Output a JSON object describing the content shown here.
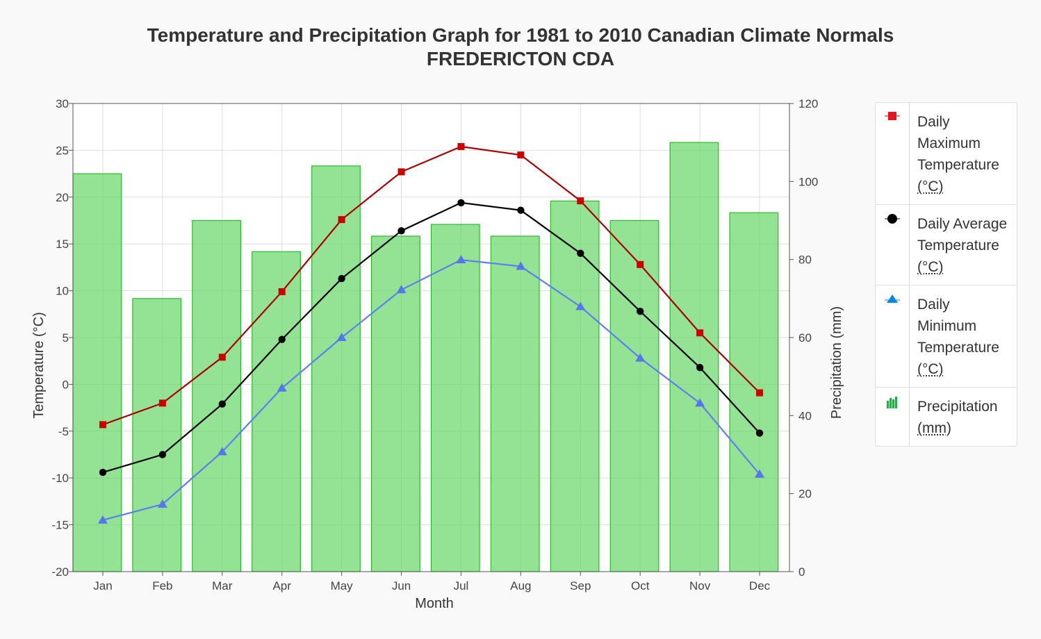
{
  "title_line1": "Temperature and Precipitation Graph for 1981 to 2010 Canadian Climate Normals",
  "title_line2": "FREDERICTON CDA",
  "chart_data": {
    "type": "bar",
    "categories": [
      "Jan",
      "Feb",
      "Mar",
      "Apr",
      "May",
      "Jun",
      "Jul",
      "Aug",
      "Sep",
      "Oct",
      "Nov",
      "Dec"
    ],
    "xlabel": "Month",
    "ylabel_left": "Temperature (°C)",
    "ylabel_right": "Precipitation (mm)",
    "ylim_left": [
      -20,
      30
    ],
    "ylim_right": [
      0,
      120
    ],
    "yticks_left": [
      30,
      25,
      20,
      15,
      10,
      5,
      0,
      -5,
      -10,
      -15,
      -20
    ],
    "yticks_right": [
      120,
      100,
      80,
      60,
      40,
      20,
      0
    ],
    "grid": true,
    "legend_position": "right",
    "series": [
      {
        "name": "Precipitation",
        "type": "bar",
        "axis": "right",
        "color": "#7ee07e",
        "values": [
          102,
          70,
          90,
          82,
          104,
          86,
          89,
          86,
          95,
          90,
          110,
          92
        ]
      },
      {
        "name": "Daily Maximum Temperature",
        "type": "line",
        "axis": "left",
        "color": "#aa0000",
        "marker": "square",
        "values": [
          -4.3,
          -2.0,
          2.9,
          9.9,
          17.6,
          22.7,
          25.4,
          24.5,
          19.6,
          12.8,
          5.5,
          -0.9
        ]
      },
      {
        "name": "Daily Average Temperature",
        "type": "line",
        "axis": "left",
        "color": "#000000",
        "marker": "circle",
        "values": [
          -9.4,
          -7.5,
          -2.1,
          4.8,
          11.3,
          16.4,
          19.4,
          18.6,
          14.0,
          7.8,
          1.8,
          -5.2
        ]
      },
      {
        "name": "Daily Minimum Temperature",
        "type": "line",
        "axis": "left",
        "color": "#5b7ff0",
        "marker": "triangle",
        "values": [
          -14.5,
          -12.8,
          -7.2,
          -0.4,
          5.0,
          10.1,
          13.3,
          12.6,
          8.3,
          2.8,
          -2.0,
          -9.6
        ]
      }
    ]
  },
  "legend": [
    {
      "label": "Daily Maximum Temperature",
      "unit": "(°C)",
      "icon": "red-square-icon"
    },
    {
      "label": "Daily Average Temperature",
      "unit": "(°C)",
      "icon": "black-circle-icon"
    },
    {
      "label": "Daily Minimum Temperature",
      "unit": "(°C)",
      "icon": "blue-triangle-icon"
    },
    {
      "label": "Precipitation",
      "unit": "(mm)",
      "icon": "green-bar-icon"
    }
  ]
}
